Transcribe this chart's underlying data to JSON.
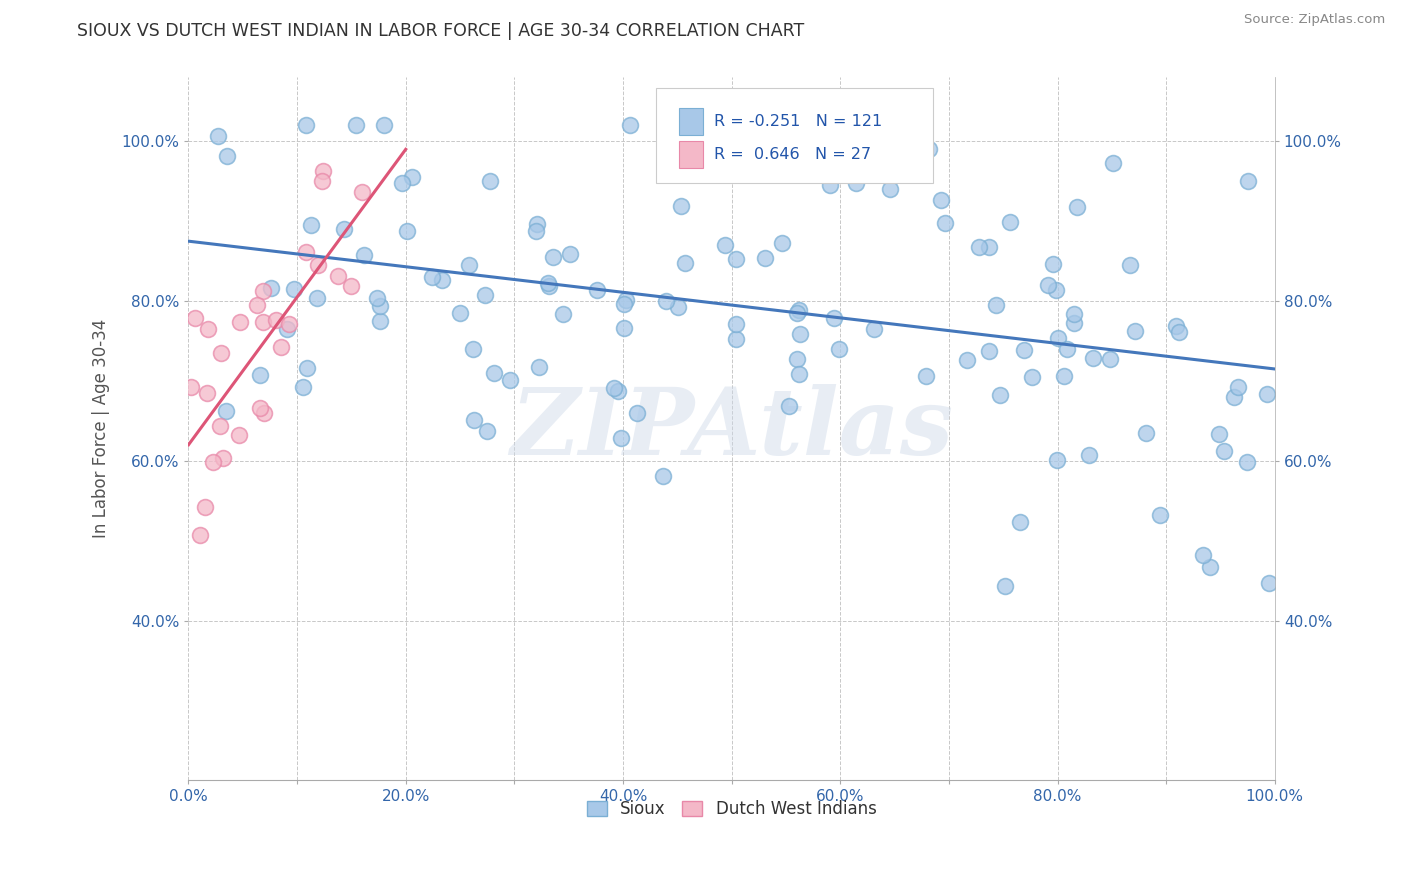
{
  "title": "SIOUX VS DUTCH WEST INDIAN IN LABOR FORCE | AGE 30-34 CORRELATION CHART",
  "source_text": "Source: ZipAtlas.com",
  "ylabel": "In Labor Force | Age 30-34",
  "watermark": "ZIPAtlas",
  "xlim": [
    0.0,
    1.0
  ],
  "ylim": [
    0.2,
    1.08
  ],
  "xticks": [
    0.0,
    0.1,
    0.2,
    0.3,
    0.4,
    0.5,
    0.6,
    0.7,
    0.8,
    0.9,
    1.0
  ],
  "yticks": [
    0.4,
    0.6,
    0.8,
    1.0
  ],
  "xtick_labels": [
    "0.0%",
    "",
    "20.0%",
    "",
    "40.0%",
    "",
    "60.0%",
    "",
    "80.0%",
    "",
    "100.0%"
  ],
  "ytick_labels": [
    "40.0%",
    "60.0%",
    "80.0%",
    "100.0%"
  ],
  "legend_sioux": "Sioux",
  "legend_dutch": "Dutch West Indians",
  "blue_color": "#a8c8e8",
  "pink_color": "#f4b8c8",
  "blue_edge_color": "#7bafd4",
  "pink_edge_color": "#e888a8",
  "blue_line_color": "#4477bb",
  "pink_line_color": "#dd5577",
  "background_color": "#ffffff",
  "grid_color": "#c8c8c8",
  "blue_R": -0.251,
  "blue_N": 121,
  "pink_R": 0.646,
  "pink_N": 27,
  "blue_line_x0": 0.0,
  "blue_line_y0": 0.875,
  "blue_line_x1": 1.0,
  "blue_line_y1": 0.715,
  "pink_line_x0": 0.0,
  "pink_line_y0": 0.62,
  "pink_line_x1": 0.2,
  "pink_line_y1": 0.99
}
